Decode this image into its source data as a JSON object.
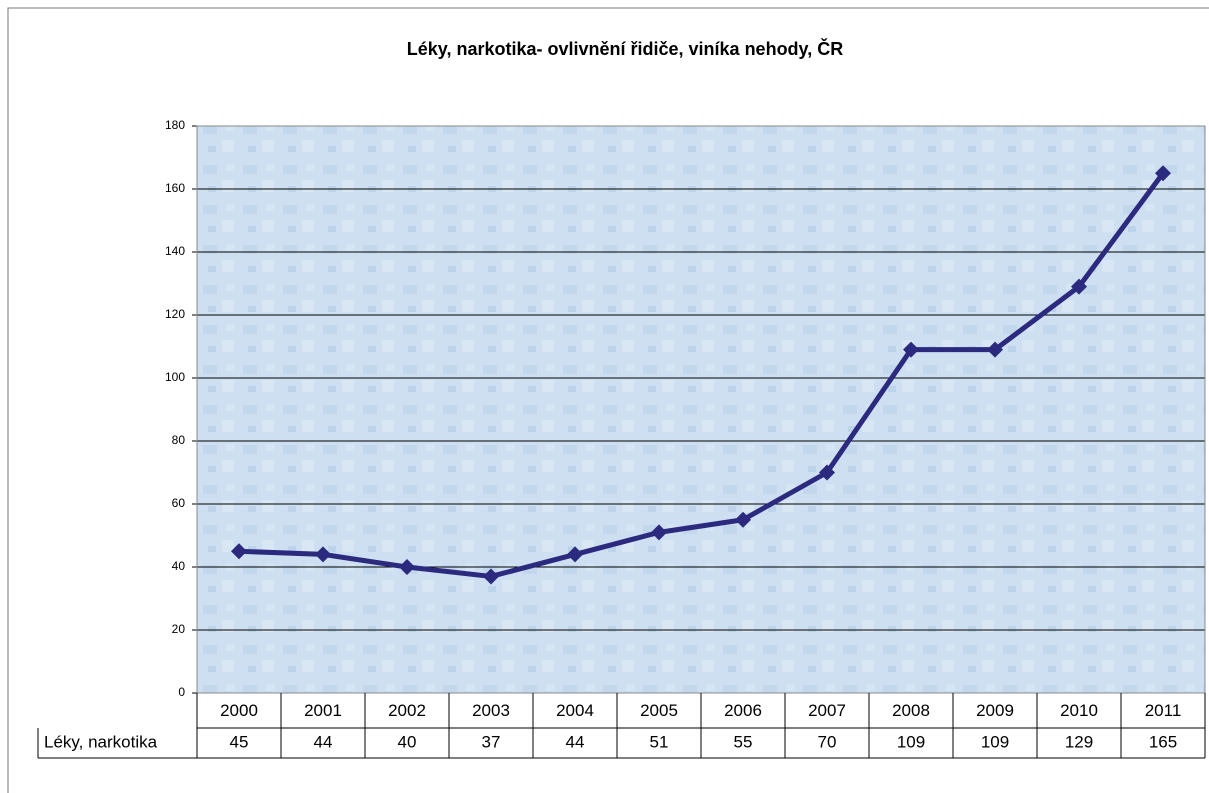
{
  "chart_data": {
    "type": "line",
    "title": "Léky, narkotika- ovlivnění řidiče, viníka nehody, ČR",
    "categories": [
      "2000",
      "2001",
      "2002",
      "2003",
      "2004",
      "2005",
      "2006",
      "2007",
      "2008",
      "2009",
      "2010",
      "2011"
    ],
    "series": [
      {
        "name": "Léky, narkotika",
        "color": "#2b2a7e",
        "values": [
          45,
          44,
          40,
          37,
          44,
          51,
          55,
          70,
          109,
          109,
          129,
          165
        ]
      }
    ],
    "ylim": [
      0,
      180
    ],
    "yticks": [
      0,
      20,
      40,
      60,
      80,
      100,
      120,
      140,
      160,
      180
    ],
    "grid": true
  }
}
